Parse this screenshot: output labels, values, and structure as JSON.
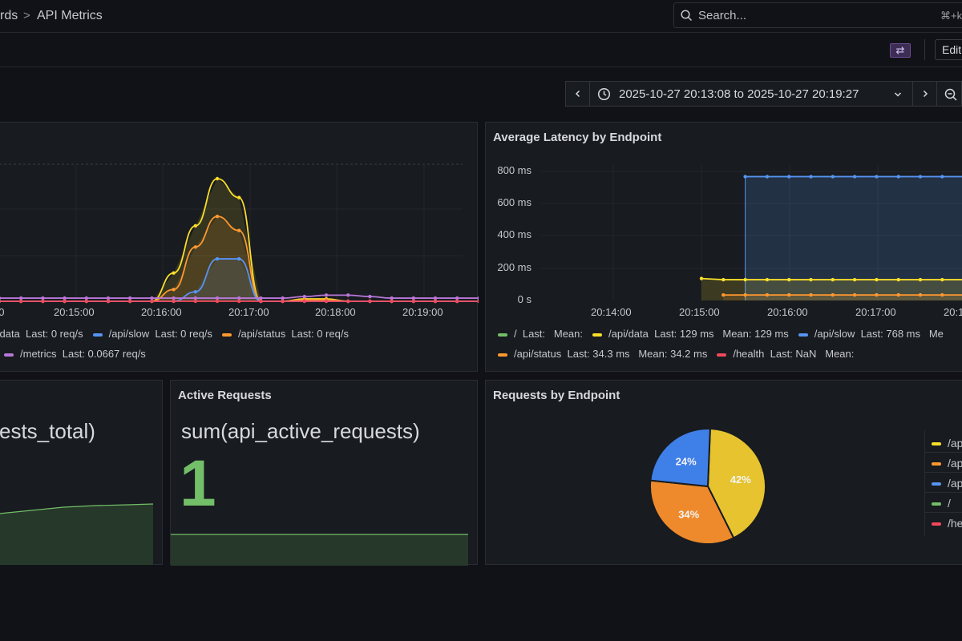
{
  "breadcrumb": {
    "parent": "rds",
    "separator": ">",
    "current": "API Metrics"
  },
  "search": {
    "placeholder": "Search...",
    "shortcut": "⌘+k"
  },
  "toolbar": {
    "share_icon": "⇄",
    "edit_label": "Edit"
  },
  "time_picker": {
    "range": "2025-10-27 20:13:08 to 2025-10-27 20:19:27"
  },
  "colors": {
    "green": "#73bf69",
    "yellow": "#fade2a",
    "blue": "#5794f2",
    "orange": "#ff9830",
    "red": "#f2495c",
    "purple": "#b877d9"
  },
  "panel_requests": {
    "x_ticks": [
      "00",
      "20:15:00",
      "20:16:00",
      "20:17:00",
      "20:18:00",
      "20:19:00"
    ],
    "legend_row1": [
      {
        "name": "i/data",
        "text": "Last: 0 req/s",
        "color": "#fade2a"
      },
      {
        "name": "/api/slow",
        "text": "Last: 0 req/s",
        "color": "#5794f2"
      },
      {
        "name": "/api/status",
        "text": "Last: 0 req/s",
        "color": "#ff9830"
      }
    ],
    "legend_row2": [
      {
        "name": "/metrics",
        "text": "Last: 0.0667 req/s",
        "color": "#b877d9"
      }
    ]
  },
  "panel_latency": {
    "title": "Average Latency by Endpoint",
    "y_ticks": [
      "800 ms",
      "600 ms",
      "400 ms",
      "200 ms",
      "0 s"
    ],
    "x_ticks": [
      "20:14:00",
      "20:15:00",
      "20:16:00",
      "20:17:00",
      "20:1"
    ],
    "legend_row1": [
      {
        "name": "/",
        "text": "Last:   Mean:",
        "color": "#73bf69"
      },
      {
        "name": "/api/data",
        "text": "Last: 129 ms   Mean: 129 ms",
        "color": "#fade2a"
      },
      {
        "name": "/api/slow",
        "text": "Last: 768 ms   Me",
        "color": "#5794f2"
      }
    ],
    "legend_row2": [
      {
        "name": "/api/status",
        "text": "Last: 34.3 ms   Mean: 34.2 ms",
        "color": "#ff9830"
      },
      {
        "name": "/health",
        "text": "Last: NaN   Mean:",
        "color": "#f2495c"
      }
    ]
  },
  "panel_total": {
    "query": "ests_total)"
  },
  "panel_active": {
    "title": "Active Requests",
    "query": "sum(api_active_requests)",
    "value": "1"
  },
  "panel_pie": {
    "title": "Requests by Endpoint",
    "legend": [
      {
        "label": "/ap",
        "color": "#fade2a"
      },
      {
        "label": "/ap",
        "color": "#ff9830"
      },
      {
        "label": "/ap",
        "color": "#5794f2"
      },
      {
        "label": "/",
        "color": "#73bf69"
      },
      {
        "label": "/he",
        "color": "#f2495c"
      }
    ]
  },
  "chart_data": [
    {
      "type": "line",
      "x": [
        "20:13:00",
        "20:13:15",
        "20:13:30",
        "20:13:45",
        "20:14:00",
        "20:14:15",
        "20:14:30",
        "20:14:45",
        "20:15:00",
        "20:15:15",
        "20:15:30",
        "20:15:45",
        "20:16:00",
        "20:16:15",
        "20:16:30",
        "20:16:45",
        "20:17:00",
        "20:17:15",
        "20:17:30",
        "20:17:45",
        "20:18:00",
        "20:18:15",
        "20:18:30",
        "20:18:45",
        "20:19:00",
        "20:19:15"
      ],
      "series": [
        {
          "name": "i/data",
          "values": [
            0,
            0,
            0,
            0,
            0,
            0,
            0,
            0,
            0.6,
            1.6,
            2.6,
            2.2,
            0,
            0,
            0.05,
            0.05,
            0,
            0,
            0,
            0,
            0,
            0,
            0,
            0,
            0,
            0
          ]
        },
        {
          "name": "/api/status",
          "values": [
            0,
            0,
            0,
            0,
            0,
            0,
            0,
            0,
            0.25,
            1.15,
            1.8,
            1.5,
            0,
            0,
            0.03,
            0.03,
            0,
            0,
            0,
            0,
            0,
            0,
            0,
            0,
            0,
            0
          ]
        },
        {
          "name": "/api/slow",
          "values": [
            0,
            0,
            0,
            0,
            0,
            0,
            0,
            0,
            0,
            0.2,
            0.9,
            0.9,
            0,
            0,
            0,
            0,
            0,
            0,
            0,
            0,
            0,
            0,
            0,
            0,
            0,
            0
          ]
        },
        {
          "name": "/metrics",
          "values": [
            0.0667,
            0.0667,
            0.0667,
            0.0667,
            0.0667,
            0.0667,
            0.0667,
            0.0667,
            0.0667,
            0.0667,
            0.0667,
            0.0667,
            0.0667,
            0.0667,
            0.1,
            0.13,
            0.13,
            0.1,
            0.0667,
            0.0667,
            0.0667,
            0.0667,
            0.0667,
            0.0667,
            0.0667,
            0.0667
          ]
        },
        {
          "name": "/health",
          "values": [
            0,
            0,
            0,
            0,
            0,
            0,
            0,
            0,
            0,
            0,
            0,
            0,
            0,
            0,
            0,
            0,
            0,
            0,
            0,
            0,
            0,
            0,
            0,
            0,
            0,
            0
          ]
        }
      ]
    },
    {
      "type": "line",
      "title": "Average Latency by Endpoint",
      "ylim": [
        0,
        800
      ],
      "x": [
        "20:15:00",
        "20:15:15",
        "20:15:30",
        "20:15:45",
        "20:16:00",
        "20:16:15",
        "20:16:30",
        "20:16:45",
        "20:17:00",
        "20:17:15",
        "20:17:30",
        "20:17:45",
        "20:18:00"
      ],
      "series": [
        {
          "name": "/api/slow",
          "values": [
            null,
            null,
            768,
            768,
            768,
            768,
            768,
            768,
            768,
            768,
            768,
            768,
            768
          ]
        },
        {
          "name": "/api/data",
          "values": [
            136,
            129,
            129,
            129,
            129,
            129,
            129,
            129,
            129,
            129,
            129,
            129,
            129
          ]
        },
        {
          "name": "/api/status",
          "values": [
            null,
            34,
            34.3,
            34.3,
            34.3,
            34.3,
            34.3,
            34.3,
            34.3,
            34.3,
            34.3,
            34.3,
            34.3
          ]
        }
      ]
    },
    {
      "type": "pie",
      "title": "Requests by Endpoint",
      "categories": [
        "/ap",
        "/ap",
        "/ap"
      ],
      "values": [
        42,
        34,
        24
      ],
      "labels": [
        "42%",
        "34%",
        "24%"
      ]
    }
  ]
}
